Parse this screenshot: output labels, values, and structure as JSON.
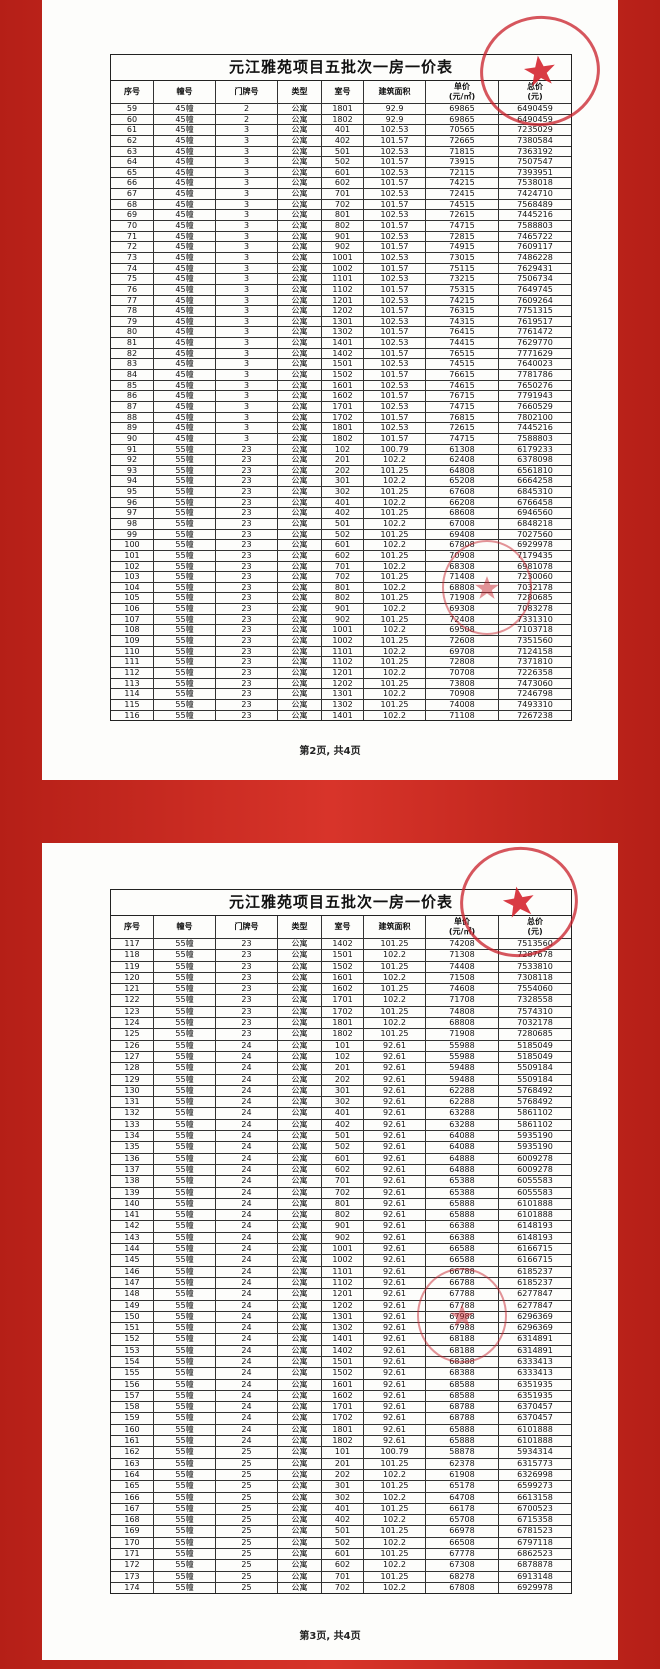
{
  "document": {
    "title": "元江雅苑项目五批次一房一价表",
    "headers": [
      "序号",
      "幢号",
      "门牌号",
      "类型",
      "室号",
      "建筑面积",
      "单价\n(元/㎡)",
      "总价\n(元)"
    ],
    "accent_color": "#c8261e",
    "stamp_color": "#d0192a"
  },
  "pages": [
    {
      "footer": "第2页, 共4页",
      "rows": [
        [
          "59",
          "45幢",
          "2",
          "公寓",
          "1801",
          "92.9",
          "69865",
          "6490459"
        ],
        [
          "60",
          "45幢",
          "2",
          "公寓",
          "1802",
          "92.9",
          "69865",
          "6490459"
        ],
        [
          "61",
          "45幢",
          "3",
          "公寓",
          "401",
          "102.53",
          "70565",
          "7235029"
        ],
        [
          "62",
          "45幢",
          "3",
          "公寓",
          "402",
          "101.57",
          "72665",
          "7380584"
        ],
        [
          "63",
          "45幢",
          "3",
          "公寓",
          "501",
          "102.53",
          "71815",
          "7363192"
        ],
        [
          "64",
          "45幢",
          "3",
          "公寓",
          "502",
          "101.57",
          "73915",
          "7507547"
        ],
        [
          "65",
          "45幢",
          "3",
          "公寓",
          "601",
          "102.53",
          "72115",
          "7393951"
        ],
        [
          "66",
          "45幢",
          "3",
          "公寓",
          "602",
          "101.57",
          "74215",
          "7538018"
        ],
        [
          "67",
          "45幢",
          "3",
          "公寓",
          "701",
          "102.53",
          "72415",
          "7424710"
        ],
        [
          "68",
          "45幢",
          "3",
          "公寓",
          "702",
          "101.57",
          "74515",
          "7568489"
        ],
        [
          "69",
          "45幢",
          "3",
          "公寓",
          "801",
          "102.53",
          "72615",
          "7445216"
        ],
        [
          "70",
          "45幢",
          "3",
          "公寓",
          "802",
          "101.57",
          "74715",
          "7588803"
        ],
        [
          "71",
          "45幢",
          "3",
          "公寓",
          "901",
          "102.53",
          "72815",
          "7465722"
        ],
        [
          "72",
          "45幢",
          "3",
          "公寓",
          "902",
          "101.57",
          "74915",
          "7609117"
        ],
        [
          "73",
          "45幢",
          "3",
          "公寓",
          "1001",
          "102.53",
          "73015",
          "7486228"
        ],
        [
          "74",
          "45幢",
          "3",
          "公寓",
          "1002",
          "101.57",
          "75115",
          "7629431"
        ],
        [
          "75",
          "45幢",
          "3",
          "公寓",
          "1101",
          "102.53",
          "73215",
          "7506734"
        ],
        [
          "76",
          "45幢",
          "3",
          "公寓",
          "1102",
          "101.57",
          "75315",
          "7649745"
        ],
        [
          "77",
          "45幢",
          "3",
          "公寓",
          "1201",
          "102.53",
          "74215",
          "7609264"
        ],
        [
          "78",
          "45幢",
          "3",
          "公寓",
          "1202",
          "101.57",
          "76315",
          "7751315"
        ],
        [
          "79",
          "45幢",
          "3",
          "公寓",
          "1301",
          "102.53",
          "74315",
          "7619517"
        ],
        [
          "80",
          "45幢",
          "3",
          "公寓",
          "1302",
          "101.57",
          "76415",
          "7761472"
        ],
        [
          "81",
          "45幢",
          "3",
          "公寓",
          "1401",
          "102.53",
          "74415",
          "7629770"
        ],
        [
          "82",
          "45幢",
          "3",
          "公寓",
          "1402",
          "101.57",
          "76515",
          "7771629"
        ],
        [
          "83",
          "45幢",
          "3",
          "公寓",
          "1501",
          "102.53",
          "74515",
          "7640023"
        ],
        [
          "84",
          "45幢",
          "3",
          "公寓",
          "1502",
          "101.57",
          "76615",
          "7781786"
        ],
        [
          "85",
          "45幢",
          "3",
          "公寓",
          "1601",
          "102.53",
          "74615",
          "7650276"
        ],
        [
          "86",
          "45幢",
          "3",
          "公寓",
          "1602",
          "101.57",
          "76715",
          "7791943"
        ],
        [
          "87",
          "45幢",
          "3",
          "公寓",
          "1701",
          "102.53",
          "74715",
          "7660529"
        ],
        [
          "88",
          "45幢",
          "3",
          "公寓",
          "1702",
          "101.57",
          "76815",
          "7802100"
        ],
        [
          "89",
          "45幢",
          "3",
          "公寓",
          "1801",
          "102.53",
          "72615",
          "7445216"
        ],
        [
          "90",
          "45幢",
          "3",
          "公寓",
          "1802",
          "101.57",
          "74715",
          "7588803"
        ],
        [
          "91",
          "55幢",
          "23",
          "公寓",
          "102",
          "100.79",
          "61308",
          "6179233"
        ],
        [
          "92",
          "55幢",
          "23",
          "公寓",
          "201",
          "102.2",
          "62408",
          "6378098"
        ],
        [
          "93",
          "55幢",
          "23",
          "公寓",
          "202",
          "101.25",
          "64808",
          "6561810"
        ],
        [
          "94",
          "55幢",
          "23",
          "公寓",
          "301",
          "102.2",
          "65208",
          "6664258"
        ],
        [
          "95",
          "55幢",
          "23",
          "公寓",
          "302",
          "101.25",
          "67608",
          "6845310"
        ],
        [
          "96",
          "55幢",
          "23",
          "公寓",
          "401",
          "102.2",
          "66208",
          "6766458"
        ],
        [
          "97",
          "55幢",
          "23",
          "公寓",
          "402",
          "101.25",
          "68608",
          "6946560"
        ],
        [
          "98",
          "55幢",
          "23",
          "公寓",
          "501",
          "102.2",
          "67008",
          "6848218"
        ],
        [
          "99",
          "55幢",
          "23",
          "公寓",
          "502",
          "101.25",
          "69408",
          "7027560"
        ],
        [
          "100",
          "55幢",
          "23",
          "公寓",
          "601",
          "102.2",
          "67808",
          "6929978"
        ],
        [
          "101",
          "55幢",
          "23",
          "公寓",
          "602",
          "101.25",
          "70908",
          "7179435"
        ],
        [
          "102",
          "55幢",
          "23",
          "公寓",
          "701",
          "102.2",
          "68308",
          "6981078"
        ],
        [
          "103",
          "55幢",
          "23",
          "公寓",
          "702",
          "101.25",
          "71408",
          "7230060"
        ],
        [
          "104",
          "55幢",
          "23",
          "公寓",
          "801",
          "102.2",
          "68808",
          "7032178"
        ],
        [
          "105",
          "55幢",
          "23",
          "公寓",
          "802",
          "101.25",
          "71908",
          "7280685"
        ],
        [
          "106",
          "55幢",
          "23",
          "公寓",
          "901",
          "102.2",
          "69308",
          "7083278"
        ],
        [
          "107",
          "55幢",
          "23",
          "公寓",
          "902",
          "101.25",
          "72408",
          "7331310"
        ],
        [
          "108",
          "55幢",
          "23",
          "公寓",
          "1001",
          "102.2",
          "69508",
          "7103718"
        ],
        [
          "109",
          "55幢",
          "23",
          "公寓",
          "1002",
          "101.25",
          "72608",
          "7351560"
        ],
        [
          "110",
          "55幢",
          "23",
          "公寓",
          "1101",
          "102.2",
          "69708",
          "7124158"
        ],
        [
          "111",
          "55幢",
          "23",
          "公寓",
          "1102",
          "101.25",
          "72808",
          "7371810"
        ],
        [
          "112",
          "55幢",
          "23",
          "公寓",
          "1201",
          "102.2",
          "70708",
          "7226358"
        ],
        [
          "113",
          "55幢",
          "23",
          "公寓",
          "1202",
          "101.25",
          "73808",
          "7473060"
        ],
        [
          "114",
          "55幢",
          "23",
          "公寓",
          "1301",
          "102.2",
          "70908",
          "7246798"
        ],
        [
          "115",
          "55幢",
          "23",
          "公寓",
          "1302",
          "101.25",
          "74008",
          "7493310"
        ],
        [
          "116",
          "55幢",
          "23",
          "公寓",
          "1401",
          "102.2",
          "71108",
          "7267238"
        ]
      ]
    },
    {
      "footer": "第3页, 共4页",
      "rows": [
        [
          "117",
          "55幢",
          "23",
          "公寓",
          "1402",
          "101.25",
          "74208",
          "7513560"
        ],
        [
          "118",
          "55幢",
          "23",
          "公寓",
          "1501",
          "102.2",
          "71308",
          "7287678"
        ],
        [
          "119",
          "55幢",
          "23",
          "公寓",
          "1502",
          "101.25",
          "74408",
          "7533810"
        ],
        [
          "120",
          "55幢",
          "23",
          "公寓",
          "1601",
          "102.2",
          "71508",
          "7308118"
        ],
        [
          "121",
          "55幢",
          "23",
          "公寓",
          "1602",
          "101.25",
          "74608",
          "7554060"
        ],
        [
          "122",
          "55幢",
          "23",
          "公寓",
          "1701",
          "102.2",
          "71708",
          "7328558"
        ],
        [
          "123",
          "55幢",
          "23",
          "公寓",
          "1702",
          "101.25",
          "74808",
          "7574310"
        ],
        [
          "124",
          "55幢",
          "23",
          "公寓",
          "1801",
          "102.2",
          "68808",
          "7032178"
        ],
        [
          "125",
          "55幢",
          "23",
          "公寓",
          "1802",
          "101.25",
          "71908",
          "7280685"
        ],
        [
          "126",
          "55幢",
          "24",
          "公寓",
          "101",
          "92.61",
          "55988",
          "5185049"
        ],
        [
          "127",
          "55幢",
          "24",
          "公寓",
          "102",
          "92.61",
          "55988",
          "5185049"
        ],
        [
          "128",
          "55幢",
          "24",
          "公寓",
          "201",
          "92.61",
          "59488",
          "5509184"
        ],
        [
          "129",
          "55幢",
          "24",
          "公寓",
          "202",
          "92.61",
          "59488",
          "5509184"
        ],
        [
          "130",
          "55幢",
          "24",
          "公寓",
          "301",
          "92.61",
          "62288",
          "5768492"
        ],
        [
          "131",
          "55幢",
          "24",
          "公寓",
          "302",
          "92.61",
          "62288",
          "5768492"
        ],
        [
          "132",
          "55幢",
          "24",
          "公寓",
          "401",
          "92.61",
          "63288",
          "5861102"
        ],
        [
          "133",
          "55幢",
          "24",
          "公寓",
          "402",
          "92.61",
          "63288",
          "5861102"
        ],
        [
          "134",
          "55幢",
          "24",
          "公寓",
          "501",
          "92.61",
          "64088",
          "5935190"
        ],
        [
          "135",
          "55幢",
          "24",
          "公寓",
          "502",
          "92.61",
          "64088",
          "5935190"
        ],
        [
          "136",
          "55幢",
          "24",
          "公寓",
          "601",
          "92.61",
          "64888",
          "6009278"
        ],
        [
          "137",
          "55幢",
          "24",
          "公寓",
          "602",
          "92.61",
          "64888",
          "6009278"
        ],
        [
          "138",
          "55幢",
          "24",
          "公寓",
          "701",
          "92.61",
          "65388",
          "6055583"
        ],
        [
          "139",
          "55幢",
          "24",
          "公寓",
          "702",
          "92.61",
          "65388",
          "6055583"
        ],
        [
          "140",
          "55幢",
          "24",
          "公寓",
          "801",
          "92.61",
          "65888",
          "6101888"
        ],
        [
          "141",
          "55幢",
          "24",
          "公寓",
          "802",
          "92.61",
          "65888",
          "6101888"
        ],
        [
          "142",
          "55幢",
          "24",
          "公寓",
          "901",
          "92.61",
          "66388",
          "6148193"
        ],
        [
          "143",
          "55幢",
          "24",
          "公寓",
          "902",
          "92.61",
          "66388",
          "6148193"
        ],
        [
          "144",
          "55幢",
          "24",
          "公寓",
          "1001",
          "92.61",
          "66588",
          "6166715"
        ],
        [
          "145",
          "55幢",
          "24",
          "公寓",
          "1002",
          "92.61",
          "66588",
          "6166715"
        ],
        [
          "146",
          "55幢",
          "24",
          "公寓",
          "1101",
          "92.61",
          "66788",
          "6185237"
        ],
        [
          "147",
          "55幢",
          "24",
          "公寓",
          "1102",
          "92.61",
          "66788",
          "6185237"
        ],
        [
          "148",
          "55幢",
          "24",
          "公寓",
          "1201",
          "92.61",
          "67788",
          "6277847"
        ],
        [
          "149",
          "55幢",
          "24",
          "公寓",
          "1202",
          "92.61",
          "67788",
          "6277847"
        ],
        [
          "150",
          "55幢",
          "24",
          "公寓",
          "1301",
          "92.61",
          "67988",
          "6296369"
        ],
        [
          "151",
          "55幢",
          "24",
          "公寓",
          "1302",
          "92.61",
          "67988",
          "6296369"
        ],
        [
          "152",
          "55幢",
          "24",
          "公寓",
          "1401",
          "92.61",
          "68188",
          "6314891"
        ],
        [
          "153",
          "55幢",
          "24",
          "公寓",
          "1402",
          "92.61",
          "68188",
          "6314891"
        ],
        [
          "154",
          "55幢",
          "24",
          "公寓",
          "1501",
          "92.61",
          "68388",
          "6333413"
        ],
        [
          "155",
          "55幢",
          "24",
          "公寓",
          "1502",
          "92.61",
          "68388",
          "6333413"
        ],
        [
          "156",
          "55幢",
          "24",
          "公寓",
          "1601",
          "92.61",
          "68588",
          "6351935"
        ],
        [
          "157",
          "55幢",
          "24",
          "公寓",
          "1602",
          "92.61",
          "68588",
          "6351935"
        ],
        [
          "158",
          "55幢",
          "24",
          "公寓",
          "1701",
          "92.61",
          "68788",
          "6370457"
        ],
        [
          "159",
          "55幢",
          "24",
          "公寓",
          "1702",
          "92.61",
          "68788",
          "6370457"
        ],
        [
          "160",
          "55幢",
          "24",
          "公寓",
          "1801",
          "92.61",
          "65888",
          "6101888"
        ],
        [
          "161",
          "55幢",
          "24",
          "公寓",
          "1802",
          "92.61",
          "65888",
          "6101888"
        ],
        [
          "162",
          "55幢",
          "25",
          "公寓",
          "101",
          "100.79",
          "58878",
          "5934314"
        ],
        [
          "163",
          "55幢",
          "25",
          "公寓",
          "201",
          "101.25",
          "62378",
          "6315773"
        ],
        [
          "164",
          "55幢",
          "25",
          "公寓",
          "202",
          "102.2",
          "61908",
          "6326998"
        ],
        [
          "165",
          "55幢",
          "25",
          "公寓",
          "301",
          "101.25",
          "65178",
          "6599273"
        ],
        [
          "166",
          "55幢",
          "25",
          "公寓",
          "302",
          "102.2",
          "64708",
          "6613158"
        ],
        [
          "167",
          "55幢",
          "25",
          "公寓",
          "401",
          "101.25",
          "66178",
          "6700523"
        ],
        [
          "168",
          "55幢",
          "25",
          "公寓",
          "402",
          "102.2",
          "65708",
          "6715358"
        ],
        [
          "169",
          "55幢",
          "25",
          "公寓",
          "501",
          "101.25",
          "66978",
          "6781523"
        ],
        [
          "170",
          "55幢",
          "25",
          "公寓",
          "502",
          "102.2",
          "66508",
          "6797118"
        ],
        [
          "171",
          "55幢",
          "25",
          "公寓",
          "601",
          "101.25",
          "67778",
          "6862523"
        ],
        [
          "172",
          "55幢",
          "25",
          "公寓",
          "602",
          "102.2",
          "67308",
          "6878878"
        ],
        [
          "173",
          "55幢",
          "25",
          "公寓",
          "701",
          "101.25",
          "68278",
          "6913148"
        ],
        [
          "174",
          "55幢",
          "25",
          "公寓",
          "702",
          "102.2",
          "67808",
          "6929978"
        ]
      ]
    }
  ]
}
